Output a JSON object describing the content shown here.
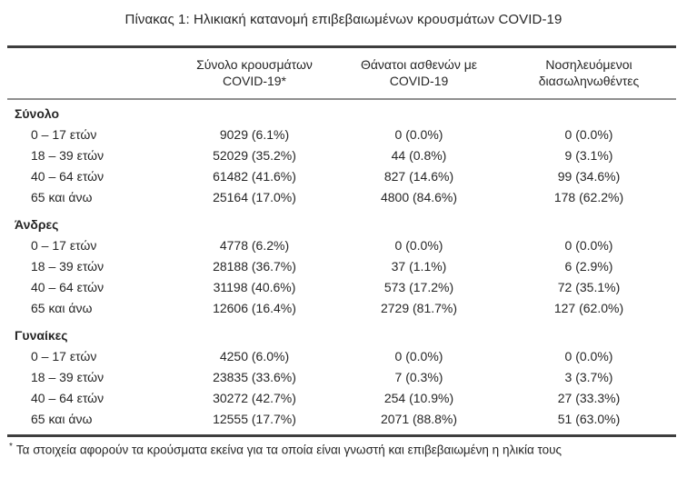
{
  "title": "Πίνακας 1: Ηλικιακή κατανομή επιβεβαιωμένων κρουσμάτων COVID-19",
  "table": {
    "columns": [
      {
        "line1": "Σύνολο κρουσμάτων",
        "line2": "COVID-19*"
      },
      {
        "line1": "Θάνατοι ασθενών με",
        "line2": "COVID-19"
      },
      {
        "line1": "Νοσηλευόμενοι",
        "line2": "διασωληνωθέντες"
      }
    ],
    "sections": [
      {
        "label": "Σύνολο",
        "rows": [
          {
            "label": "0 – 17 ετών",
            "cases": "9029 (6.1%)",
            "deaths": "0 (0.0%)",
            "intubated": "0 (0.0%)"
          },
          {
            "label": "18 – 39 ετών",
            "cases": "52029 (35.2%)",
            "deaths": "44 (0.8%)",
            "intubated": "9 (3.1%)"
          },
          {
            "label": "40 – 64 ετών",
            "cases": "61482 (41.6%)",
            "deaths": "827 (14.6%)",
            "intubated": "99 (34.6%)"
          },
          {
            "label": "65 και άνω",
            "cases": "25164 (17.0%)",
            "deaths": "4800 (84.6%)",
            "intubated": "178 (62.2%)"
          }
        ]
      },
      {
        "label": "Άνδρες",
        "rows": [
          {
            "label": "0 – 17 ετών",
            "cases": "4778 (6.2%)",
            "deaths": "0 (0.0%)",
            "intubated": "0 (0.0%)"
          },
          {
            "label": "18 – 39 ετών",
            "cases": "28188 (36.7%)",
            "deaths": "37 (1.1%)",
            "intubated": "6 (2.9%)"
          },
          {
            "label": "40 – 64 ετών",
            "cases": "31198 (40.6%)",
            "deaths": "573 (17.2%)",
            "intubated": "72 (35.1%)"
          },
          {
            "label": "65 και άνω",
            "cases": "12606 (16.4%)",
            "deaths": "2729 (81.7%)",
            "intubated": "127 (62.0%)"
          }
        ]
      },
      {
        "label": "Γυναίκες",
        "rows": [
          {
            "label": "0 – 17 ετών",
            "cases": "4250 (6.0%)",
            "deaths": "0 (0.0%)",
            "intubated": "0 (0.0%)"
          },
          {
            "label": "18 – 39 ετών",
            "cases": "23835 (33.6%)",
            "deaths": "7 (0.3%)",
            "intubated": "3 (3.7%)"
          },
          {
            "label": "40 – 64 ετών",
            "cases": "30272 (42.7%)",
            "deaths": "254 (10.9%)",
            "intubated": "27 (33.3%)"
          },
          {
            "label": "65 και άνω",
            "cases": "12555 (17.7%)",
            "deaths": "2071 (88.8%)",
            "intubated": "51 (63.0%)"
          }
        ]
      }
    ]
  },
  "footnote": {
    "marker": "*",
    "text": "Τα στοιχεία αφορούν τα κρούσματα εκείνα για τα οποία είναι γνωστή και επιβεβαιωμένη η ηλικία τους"
  }
}
